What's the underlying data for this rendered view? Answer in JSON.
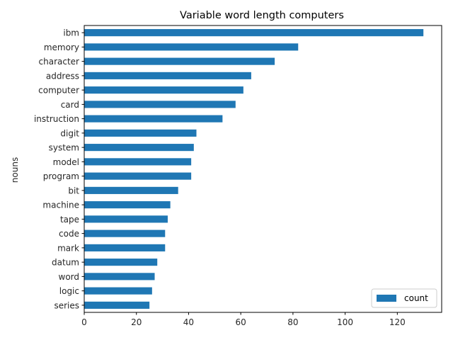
{
  "chart_data": {
    "type": "bar",
    "orientation": "horizontal",
    "title": "Variable word length computers",
    "xlabel": "",
    "ylabel": "nouns",
    "categories": [
      "ibm",
      "memory",
      "character",
      "address",
      "computer",
      "card",
      "instruction",
      "digit",
      "system",
      "model",
      "program",
      "bit",
      "machine",
      "tape",
      "code",
      "mark",
      "datum",
      "word",
      "logic",
      "series"
    ],
    "series": [
      {
        "name": "count",
        "values": [
          130,
          82,
          73,
          64,
          61,
          58,
          53,
          43,
          42,
          41,
          41,
          36,
          33,
          32,
          31,
          31,
          28,
          27,
          26,
          25
        ]
      }
    ],
    "xlim": [
      0,
      137
    ],
    "xticks": [
      0,
      20,
      40,
      60,
      80,
      100,
      120
    ],
    "grid": false,
    "legend_position": "lower right",
    "bar_color": "#1f77b4"
  }
}
